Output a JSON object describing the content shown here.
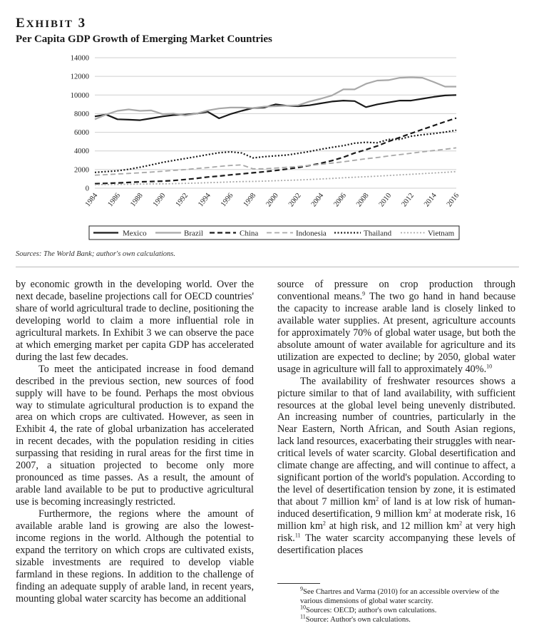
{
  "exhibit": {
    "label_first": "E",
    "label_rest": "XHIBIT",
    "number": "3",
    "title": "Per Capita GDP Growth of Emerging Market Countries"
  },
  "chart_data": {
    "type": "line",
    "x": [
      1984,
      1985,
      1986,
      1987,
      1988,
      1989,
      1990,
      1991,
      1992,
      1993,
      1994,
      1995,
      1996,
      1997,
      1998,
      1999,
      2000,
      2001,
      2002,
      2003,
      2004,
      2005,
      2006,
      2007,
      2008,
      2009,
      2010,
      2011,
      2012,
      2013,
      2014,
      2015,
      2016
    ],
    "x_tick_labels": [
      "1984",
      "1986",
      "1988",
      "1990",
      "1992",
      "1994",
      "1996",
      "1998",
      "2000",
      "2002",
      "2004",
      "2006",
      "2008",
      "2010",
      "2012",
      "2014",
      "2016"
    ],
    "y_tick_labels": [
      "0",
      "2000",
      "4000",
      "6000",
      "8000",
      "10000",
      "12000",
      "14000"
    ],
    "ylim": [
      0,
      14000
    ],
    "grid": true,
    "legend_position": "bottom",
    "series": [
      {
        "name": "Mexico",
        "color": "#1a1a1a",
        "dash": "solid",
        "width": 2.2,
        "values": [
          7700,
          7900,
          7400,
          7350,
          7300,
          7500,
          7700,
          7850,
          7900,
          8000,
          8200,
          7500,
          7950,
          8300,
          8600,
          8650,
          9000,
          8850,
          8800,
          8900,
          9100,
          9300,
          9400,
          9350,
          8700,
          9000,
          9200,
          9400,
          9400,
          9600,
          9800,
          9950,
          10000
        ]
      },
      {
        "name": "Brazil",
        "color": "#a8a8a8",
        "dash": "solid",
        "width": 2.2,
        "values": [
          7400,
          7900,
          8300,
          8450,
          8300,
          8350,
          7950,
          8000,
          7800,
          8000,
          8350,
          8550,
          8650,
          8650,
          8600,
          8750,
          8800,
          8850,
          8900,
          9300,
          9600,
          9950,
          10600,
          10600,
          11200,
          11550,
          11600,
          11850,
          11900,
          11850,
          11400,
          10900,
          10900
        ]
      },
      {
        "name": "China",
        "color": "#1a1a1a",
        "dash": "dashed",
        "width": 2.2,
        "values": [
          480,
          520,
          560,
          620,
          680,
          720,
          760,
          830,
          930,
          1050,
          1200,
          1300,
          1430,
          1540,
          1650,
          1770,
          1900,
          2050,
          2220,
          2430,
          2670,
          2960,
          3320,
          3770,
          4130,
          4530,
          5010,
          5450,
          5880,
          6300,
          6720,
          7140,
          7530
        ]
      },
      {
        "name": "Indonesia",
        "color": "#a8a8a8",
        "dash": "dashed",
        "width": 1.8,
        "values": [
          1400,
          1450,
          1520,
          1580,
          1650,
          1730,
          1820,
          1910,
          2000,
          2110,
          2210,
          2330,
          2440,
          2500,
          2080,
          2080,
          2160,
          2240,
          2330,
          2440,
          2560,
          2690,
          2830,
          3000,
          3160,
          3290,
          3460,
          3600,
          3750,
          3900,
          4040,
          4180,
          4330
        ]
      },
      {
        "name": "Thailand",
        "color": "#1a1a1a",
        "dash": "dotted",
        "width": 2.2,
        "values": [
          1700,
          1780,
          1870,
          2030,
          2250,
          2500,
          2770,
          2980,
          3180,
          3390,
          3600,
          3800,
          3900,
          3780,
          3250,
          3380,
          3470,
          3560,
          3740,
          3930,
          4180,
          4380,
          4570,
          4830,
          4930,
          4870,
          5230,
          5250,
          5580,
          5740,
          5860,
          6020,
          6220
        ]
      },
      {
        "name": "Vietnam",
        "color": "#a8a8a8",
        "dash": "dotted",
        "width": 1.8,
        "values": [
          380,
          400,
          410,
          420,
          440,
          460,
          470,
          490,
          520,
          550,
          590,
          630,
          670,
          710,
          730,
          760,
          800,
          840,
          880,
          930,
          990,
          1050,
          1120,
          1180,
          1230,
          1290,
          1360,
          1430,
          1490,
          1560,
          1630,
          1700,
          1780
        ]
      }
    ]
  },
  "sources_note": "Sources: The World Bank; author's own calculations.",
  "left_column": {
    "p1": "by economic growth in the developing world. Over the next decade, baseline projections call for OECD countries' share of world agricultural trade to decline, positioning the developing world to claim a more influential role in agricultural markets. In Exhibit 3 we can observe the pace at which emerging market per capita GDP has accelerated during the last few decades.",
    "p2": "To meet the anticipated increase in food demand described in the previous section, new sources of food supply will have to be found. Perhaps the most obvious way to stimulate agricultural production is to expand the area on which crops are cultivated. However, as seen in Exhibit 4, the rate of global urbanization has accelerated in recent decades, with the population residing in cities surpassing that residing in rural areas for the first time in 2007, a situation projected to become only more pronounced as time passes. As a result, the amount of arable land available to be put to productive agricultural use is becoming increasingly restricted.",
    "p3": "Furthermore, the regions where the amount of available arable land is growing are also the lowest-income regions in the world. Although the potential to expand the territory on which crops are cultivated exists, sizable investments are required to develop viable farmland in these regions. In addition to the challenge of finding an adequate supply of arable land, in recent years, mounting global water scarcity has become an additional"
  },
  "right_column": {
    "p1a": "source of pressure on crop production through conventional means.",
    "p1_ref": "9",
    "p1b": " The two go hand in hand because the capacity to increase arable land is closely linked to available water supplies. At present, agriculture accounts for approximately 70% of global water usage, but both the absolute amount of water available for agriculture and its utilization are expected to decline; by 2050, global water usage in agriculture will fall to approximately 40%.",
    "p1_ref2": "10",
    "p2a": "The availability of freshwater resources shows a picture similar to that of land availability, with sufficient resources at the global level being unevenly distributed. An increasing number of countries, particularly in the Near Eastern, North African, and South Asian regions, lack land resources, exacerbating their struggles with near-critical levels of water scarcity. Global desertification and climate change are affecting, and will continue to affect, a significant portion of the world's population. According to the level of desertification tension by zone, it is estimated that about 7 million km",
    "sq": "2",
    "p2b": " of land is at low risk of human-induced desertification, 9 million km",
    "p2c": " at moderate risk, 16 million km",
    "p2d": " at high risk, and 12 million km",
    "p2e": " at very high risk.",
    "p2_ref": "11",
    "p2f": " The water scarcity accompanying these levels of desertification places"
  },
  "footnotes": {
    "fn9_num": "9",
    "fn9_text": "See Chartres and Varma (2010) for an accessible overview of the various dimensions of global water scarcity.",
    "fn10_num": "10",
    "fn10_text": "Sources: OECD; author's own calculations.",
    "fn11_num": "11",
    "fn11_text": "Source: Author's own calculations."
  }
}
